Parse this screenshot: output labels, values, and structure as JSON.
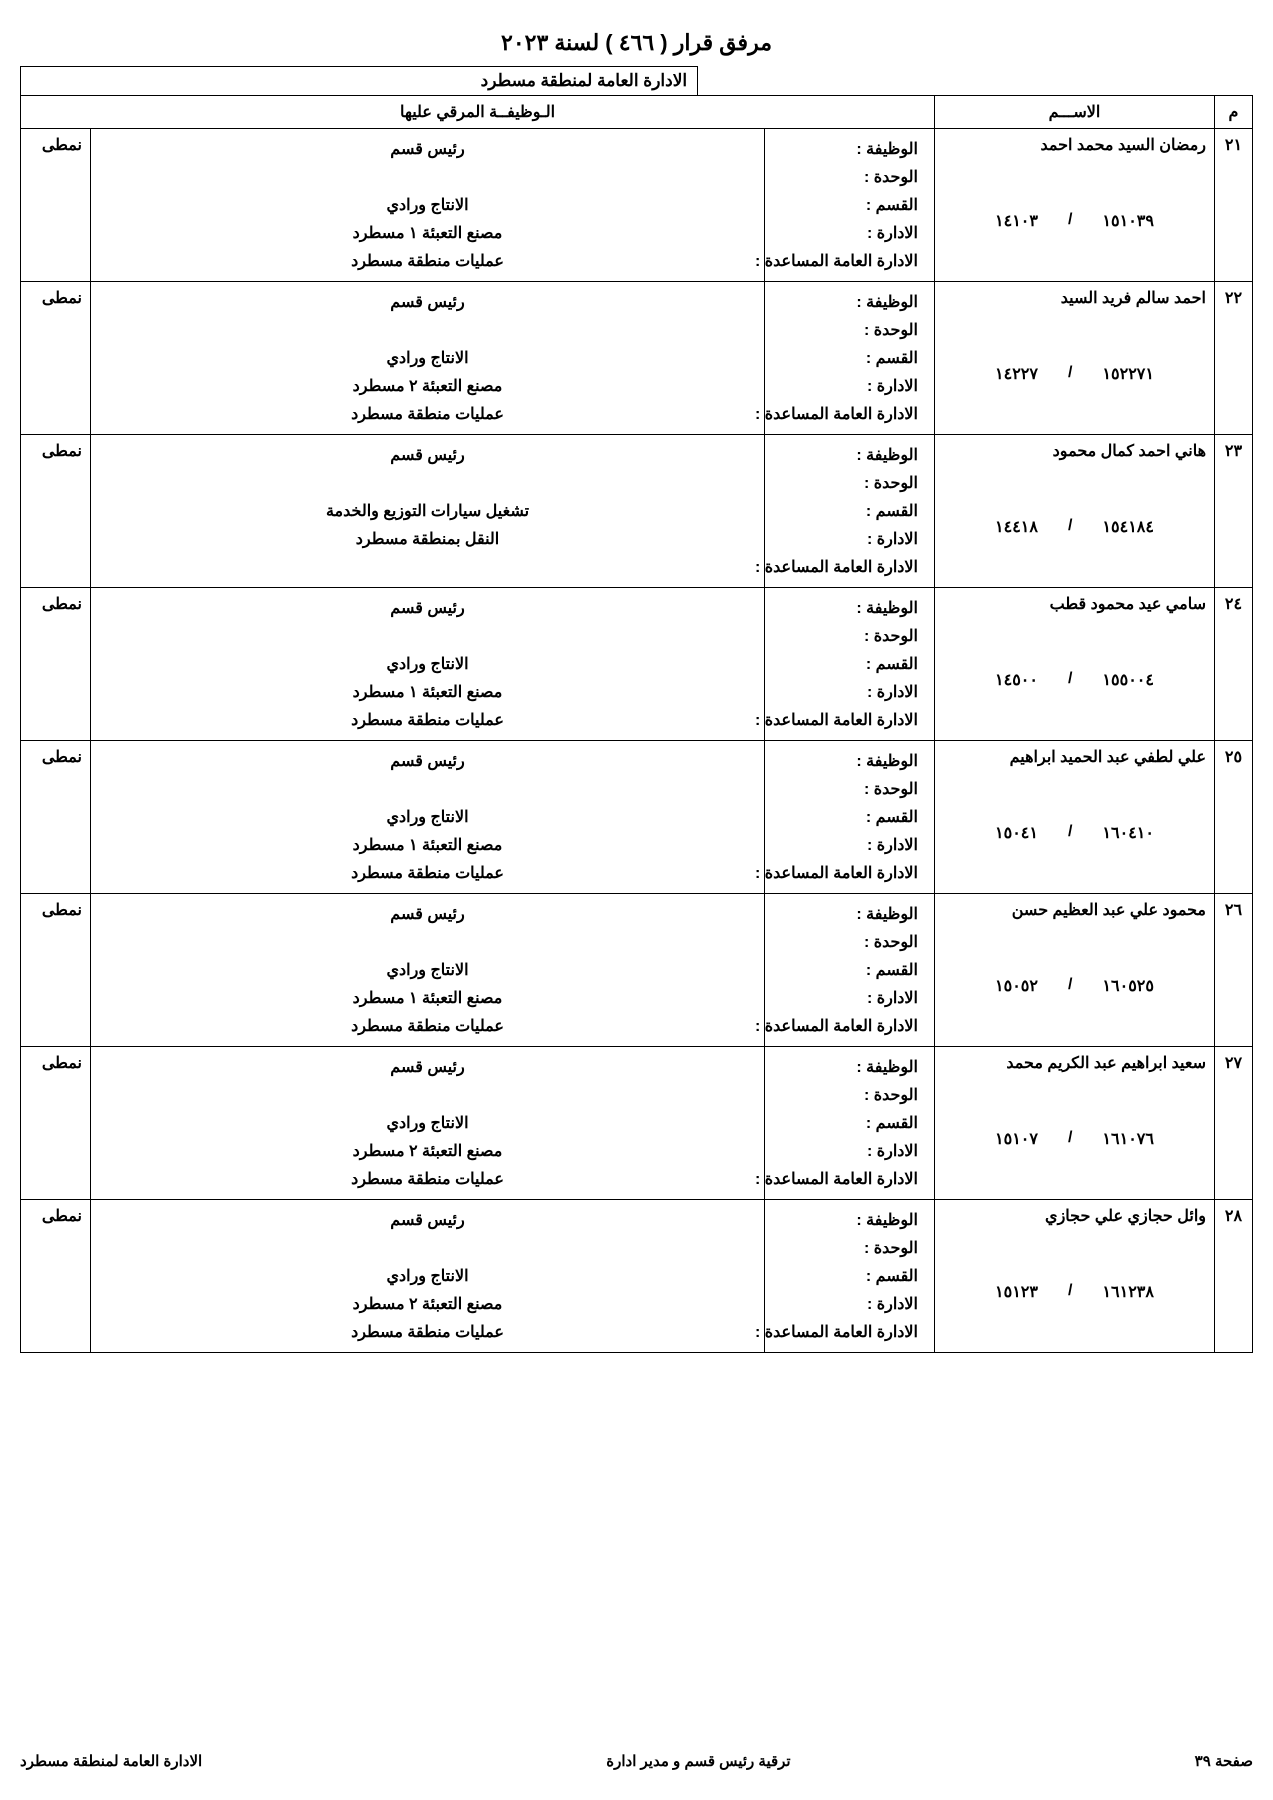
{
  "doc": {
    "title": "مرفق قرار ( ٤٦٦ ) لسنة ٢٠٢٣",
    "region_header": "الادارة العامة لمنطقة مسطرد",
    "col_idx": "م",
    "col_name": "الاســـم",
    "col_job": "الـوظيفــة المرقي عليها",
    "labels": {
      "job": "الوظيفة :",
      "unit": "الوحدة :",
      "dept": "القسم :",
      "admin": "الادارة :",
      "aux": "الادارة العامة المساعدة :"
    },
    "type_label": "نمطى",
    "footer": {
      "page": "صفحة ٣٩",
      "mid": "ترقية رئيس قسم و مدير ادارة",
      "left": "الادارة العامة لمنطقة مسطرد"
    }
  },
  "rows": [
    {
      "idx": "٢١",
      "name": "رمضان السيد محمد احمد",
      "num1": "١٤١٠٣",
      "num2": "١٥١٠٣٩",
      "job": "رئيس قسم",
      "unit": "",
      "dept": "الانتاج ورادي",
      "admin": "مصنع التعبئة ١ مسطرد",
      "aux": "عمليات منطقة مسطرد"
    },
    {
      "idx": "٢٢",
      "name": "احمد سالم فريد السيد",
      "num1": "١٤٢٢٧",
      "num2": "١٥٢٢٧١",
      "job": "رئيس قسم",
      "unit": "",
      "dept": "الانتاج ورادي",
      "admin": "مصنع التعبئة ٢ مسطرد",
      "aux": "عمليات منطقة مسطرد"
    },
    {
      "idx": "٢٣",
      "name": "هاني احمد كمال محمود",
      "num1": "١٤٤١٨",
      "num2": "١٥٤١٨٤",
      "job": "رئيس قسم",
      "unit": "",
      "dept": "تشغيل سيارات التوزيع والخدمة",
      "admin": "النقل بمنطقة مسطرد",
      "aux": ""
    },
    {
      "idx": "٢٤",
      "name": "سامي عيد محمود قطب",
      "num1": "١٤٥٠٠",
      "num2": "١٥٥٠٠٤",
      "job": "رئيس قسم",
      "unit": "",
      "dept": "الانتاج ورادي",
      "admin": "مصنع التعبئة ١ مسطرد",
      "aux": "عمليات منطقة مسطرد"
    },
    {
      "idx": "٢٥",
      "name": "علي لطفي عبد الحميد ابراهيم",
      "num1": "١٥٠٤١",
      "num2": "١٦٠٤١٠",
      "job": "رئيس قسم",
      "unit": "",
      "dept": "الانتاج ورادي",
      "admin": "مصنع التعبئة ١ مسطرد",
      "aux": "عمليات منطقة مسطرد"
    },
    {
      "idx": "٢٦",
      "name": "محمود علي عبد العظيم حسن",
      "num1": "١٥٠٥٢",
      "num2": "١٦٠٥٢٥",
      "job": "رئيس قسم",
      "unit": "",
      "dept": "الانتاج ورادي",
      "admin": "مصنع التعبئة ١ مسطرد",
      "aux": "عمليات منطقة مسطرد"
    },
    {
      "idx": "٢٧",
      "name": "سعيد ابراهيم عبد الكريم محمد",
      "num1": "١٥١٠٧",
      "num2": "١٦١٠٧٦",
      "job": "رئيس قسم",
      "unit": "",
      "dept": "الانتاج ورادي",
      "admin": "مصنع التعبئة ٢ مسطرد",
      "aux": "عمليات منطقة مسطرد"
    },
    {
      "idx": "٢٨",
      "name": "وائل حجازي علي حجازي",
      "num1": "١٥١٢٣",
      "num2": "١٦١٢٣٨",
      "job": "رئيس قسم",
      "unit": "",
      "dept": "الانتاج ورادي",
      "admin": "مصنع التعبئة ٢ مسطرد",
      "aux": "عمليات منطقة مسطرد"
    }
  ]
}
